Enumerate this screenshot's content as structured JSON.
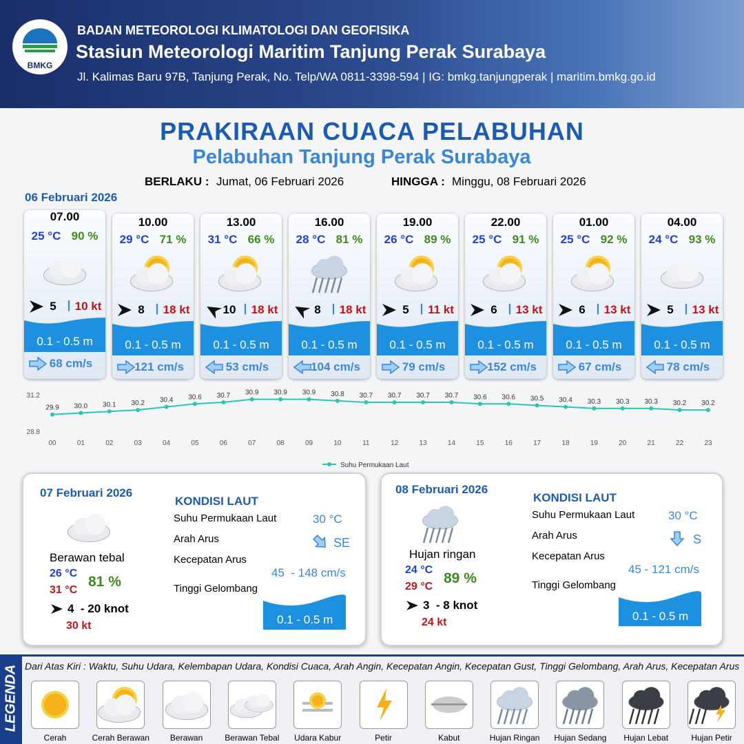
{
  "header": {
    "agency": "BADAN METEOROLOGI KLIMATOLOGI DAN GEOFISIKA",
    "station": "Stasiun Meteorologi Maritim Tanjung Perak Surabaya",
    "address": "Jl. Kalimas Baru 97B, Tanjung Perak, No. Telp/WA 0811-3398-594 | IG: bmkg.tanjungperak | maritim.bmkg.go.id",
    "logo": "BMKG"
  },
  "title": "PRAKIRAAN CUACA PELABUHAN",
  "subtitle": "Pelabuhan Tanjung Perak Surabaya",
  "validity": {
    "from_label": "BERLAKU :",
    "from": "Jumat, 06 Februari 2026",
    "to_label": "HINGGA :",
    "to": "Minggu, 08 Februari 2026"
  },
  "forecast_date": "06 Februari 2026",
  "slots": [
    {
      "time": "07.00",
      "temp": "25 °C",
      "humidity": "90 %",
      "wind": "5",
      "gust": "10 kt",
      "wave": "0.1 - 0.5 m",
      "current": "68 cm/s"
    },
    {
      "time": "10.00",
      "temp": "29 °C",
      "humidity": "71 %",
      "wind": "8",
      "gust": "18 kt",
      "wave": "0.1 - 0.5 m",
      "current": "121 cm/s"
    },
    {
      "time": "13.00",
      "temp": "31 °C",
      "humidity": "66 %",
      "wind": "10",
      "gust": "18 kt",
      "wave": "0.1 - 0.5 m",
      "current": "53 cm/s"
    },
    {
      "time": "16.00",
      "temp": "28 °C",
      "humidity": "81 %",
      "wind": "8",
      "gust": "18 kt",
      "wave": "0.1 - 0.5 m",
      "current": "104 cm/s"
    },
    {
      "time": "19.00",
      "temp": "26 °C",
      "humidity": "89 %",
      "wind": "5",
      "gust": "11 kt",
      "wave": "0.1 - 0.5 m",
      "current": "79 cm/s"
    },
    {
      "time": "22.00",
      "temp": "25 °C",
      "humidity": "91 %",
      "wind": "6",
      "gust": "13 kt",
      "wave": "0.1 - 0.5 m",
      "current": "152 cm/s"
    },
    {
      "time": "01.00",
      "temp": "25 °C",
      "humidity": "92 %",
      "wind": "6",
      "gust": "13 kt",
      "wave": "0.1 - 0.5 m",
      "current": "67 cm/s"
    },
    {
      "time": "04.00",
      "temp": "24 °C",
      "humidity": "93 %",
      "wind": "5",
      "gust": "13 kt",
      "wave": "0.1 - 0.5 m",
      "current": "78 cm/s"
    }
  ],
  "chart_data": {
    "type": "line",
    "categories": [
      "00",
      "01",
      "02",
      "03",
      "04",
      "05",
      "06",
      "07",
      "08",
      "09",
      "10",
      "11",
      "12",
      "13",
      "14",
      "15",
      "16",
      "17",
      "18",
      "19",
      "20",
      "21",
      "22",
      "23"
    ],
    "series": [
      {
        "name": "Suhu Permukaan Laut",
        "color": "#2bc4b4",
        "values": [
          29.9,
          30.0,
          30.1,
          30.2,
          30.4,
          30.6,
          30.7,
          30.9,
          30.9,
          30.9,
          30.8,
          30.7,
          30.7,
          30.7,
          30.7,
          30.6,
          30.6,
          30.5,
          30.4,
          30.3,
          30.3,
          30.3,
          30.2,
          30.2
        ],
        "value_labels": [
          "29.9",
          "30.0",
          "30.1",
          "30.2",
          "30.4",
          "30.6",
          "30.7",
          "30.9",
          "30.9",
          "30.9",
          "30.8",
          "30.7",
          "30.7",
          "30.7",
          "30.7",
          "30.6",
          "30.6",
          "30.5",
          "30.4",
          "30.3",
          "30.3",
          "30.3",
          "30.2",
          "30.2"
        ]
      }
    ],
    "ylim": [
      28.8,
      31.2
    ],
    "yticks": [
      28.8,
      31.2
    ],
    "legend": "bottom"
  },
  "daily": [
    {
      "date": "07 Februari 2026",
      "condition": "Berawan tebal",
      "temp_min": "26 °C",
      "temp_max": "31 °C",
      "humidity": "81 %",
      "wind": "4  - 20 knot",
      "gust": "30 kt",
      "sea_title": "KONDISI LAUT",
      "sst_label": "Suhu Permukaan Laut",
      "sst": "30 °C",
      "dir_label": "Arah Arus",
      "dir": "SE",
      "speed_label": "Kecepatan Arus",
      "speed": "45  - 148 cm/s",
      "wave_label": "Tinggi Gelombang",
      "wave": "0.1 - 0.5 m"
    },
    {
      "date": "08 Februari 2026",
      "condition": "Hujan ringan",
      "temp_min": "24 °C",
      "temp_max": "29 °C",
      "humidity": "89 %",
      "wind": "3  - 8 knot",
      "gust": "24 kt",
      "sea_title": "KONDISI LAUT",
      "sst_label": "Suhu Permukaan Laut",
      "sst": "30 °C",
      "dir_label": "Arah Arus",
      "dir": "S",
      "speed_label": "Kecepatan Arus",
      "speed": "45 - 121 cm/s",
      "wave_label": "Tinggi Gelombang",
      "wave": "0.1 - 0.5 m"
    }
  ],
  "legend": {
    "label": "LEGENDA",
    "description": "Dari Atas Kiri : Waktu, Suhu Udara, Kelembapan Udara, Kondisi Cuaca, Arah Angin, Kecepatan Angin, Kecepatan Gust, Tinggi Gelombang, Arah Arus, Kecepatan Arus",
    "items": [
      "Cerah",
      "Cerah Berawan",
      "Berawan",
      "Berawan Tebal",
      "Udara Kabur",
      "Petir",
      "Kabut",
      "Hujan Ringan",
      "Hujan Sedang",
      "Hujan Lebat",
      "Hujan Petir"
    ]
  }
}
